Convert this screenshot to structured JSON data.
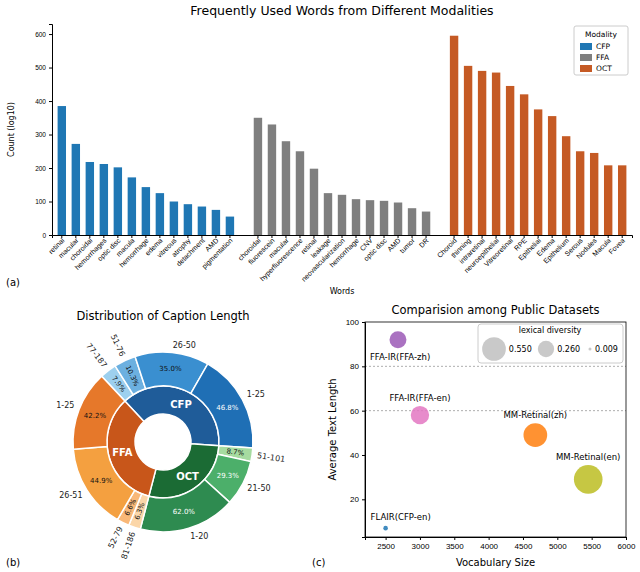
{
  "chart_data": [
    {
      "type": "bar",
      "title": "Frequently Used Words from Different Modalities",
      "annotation": "(a)",
      "x_label": "Words",
      "y_label": "Count (log10)",
      "categories": [
        "retinal",
        "macular",
        "choroidal",
        "hemorrhages",
        "optic disc",
        "macula",
        "hemorrhage",
        "edema",
        "vitreous",
        "atrophy",
        "detachment",
        "AMD",
        "pigmentation",
        null,
        "choroidal",
        "fluorescein",
        "macular",
        "hyperfluorescence",
        "retinal",
        "leakage",
        "neovascularization",
        "hemorrhage",
        "CNV",
        "optic disc",
        "AMD",
        "tumor",
        "DR",
        null,
        "Choroid",
        "thinning",
        "intraretinal",
        "neuroepithelial",
        "Vitreoretinal",
        "RPE",
        "Epithelial",
        "Edema",
        "Epithelium",
        "Serous",
        "Nodules",
        "Macula",
        "Fovea"
      ],
      "series": [
        {
          "name": "CFP",
          "color": "#1f77b4",
          "values": [
            385,
            272,
            218,
            212,
            202,
            172,
            143,
            125,
            100,
            92,
            85,
            75,
            55,
            null,
            null,
            null,
            null,
            null,
            null,
            null,
            null,
            null,
            null,
            null,
            null,
            null,
            null,
            null,
            null,
            null,
            null,
            null,
            null,
            null,
            null,
            null,
            null,
            null,
            null,
            null,
            null
          ]
        },
        {
          "name": "FFA",
          "color": "#7f7f7f",
          "values": [
            null,
            null,
            null,
            null,
            null,
            null,
            null,
            null,
            null,
            null,
            null,
            null,
            null,
            null,
            350,
            330,
            280,
            250,
            198,
            125,
            120,
            107,
            104,
            102,
            97,
            80,
            70,
            null,
            null,
            null,
            null,
            null,
            null,
            null,
            null,
            null,
            null,
            null,
            null,
            null,
            null
          ]
        },
        {
          "name": "OCT",
          "color": "#c55a24",
          "values": [
            null,
            null,
            null,
            null,
            null,
            null,
            null,
            null,
            null,
            null,
            null,
            null,
            null,
            null,
            null,
            null,
            null,
            null,
            null,
            null,
            null,
            null,
            null,
            null,
            null,
            null,
            null,
            null,
            595,
            505,
            490,
            485,
            445,
            420,
            375,
            355,
            295,
            250,
            245,
            208,
            208
          ]
        }
      ],
      "ylim": [
        0,
        630
      ],
      "yticks": [
        0,
        100,
        200,
        300,
        400,
        500,
        600
      ],
      "legend": "upper right",
      "legend_title": "Modality"
    },
    {
      "type": "sunburst",
      "title": "Distribution of Caption Length",
      "annotation": "(b)",
      "data_labels": true,
      "series": [
        {
          "name": "CFP",
          "color": "#1f5c99",
          "value": 38,
          "categories": [
            "77-187",
            "51-76",
            "26-50",
            "1-25"
          ],
          "values": [
            7.9,
            10.3,
            35.0,
            46.8
          ],
          "value_labels": [
            "7.9%",
            "10.3%",
            "35.0%",
            "46.8%"
          ],
          "colors": [
            "#9dd0ee",
            "#6cb0e0",
            "#3a8fd0",
            "#1f6fb5"
          ]
        },
        {
          "name": "OCT",
          "color": "#1b6b34",
          "value": 28,
          "categories": [
            "51-101",
            "21-50",
            "1-20"
          ],
          "values": [
            8.7,
            29.3,
            62.0
          ],
          "value_labels": [
            "8.7%",
            "29.3%",
            "62.0%"
          ],
          "colors": [
            "#a6dba0",
            "#4caf6a",
            "#2e8b50"
          ]
        },
        {
          "name": "FFA",
          "color": "#c8561a",
          "value": 34,
          "categories": [
            "81-186",
            "52-79",
            "26-51",
            "1-25"
          ],
          "values": [
            6.3,
            6.6,
            44.9,
            42.2
          ],
          "value_labels": [
            "6.3%",
            "6.6%",
            "44.9%",
            "42.2%"
          ],
          "colors": [
            "#fbd6a8",
            "#f9b878",
            "#f4a040",
            "#e6782a"
          ]
        }
      ]
    },
    {
      "type": "scatter",
      "title": "Comparision among Public Datasets",
      "annotation": "(c)",
      "x_label": "Vocabulary Size",
      "y_label": "Average Text Length",
      "xlim": [
        2200,
        6000
      ],
      "xticks": [
        2500,
        3000,
        3500,
        4000,
        4500,
        5000,
        5500,
        6000
      ],
      "ylim": [
        3,
        100
      ],
      "yticks": [
        20,
        40,
        60,
        80,
        100
      ],
      "hlines": [
        80,
        60
      ],
      "size_legend_title": "lexical diversity",
      "size_legend": [
        {
          "value": 0.55,
          "label": "0.550"
        },
        {
          "value": 0.26,
          "label": "0.260"
        },
        {
          "value": 0.009,
          "label": "0.009"
        }
      ],
      "series": [
        {
          "name": "FFA-IR(FFA-zh)",
          "color": "#9b59b6",
          "x": [
            2680
          ],
          "values": [
            92
          ],
          "size": [
            0.28
          ]
        },
        {
          "name": "FFA-IR(FFA-en)",
          "color": "#e377c2",
          "x": [
            3000
          ],
          "values": [
            58
          ],
          "size": [
            0.33
          ]
        },
        {
          "name": "MM-Retinal(zh)",
          "color": "#ff7f0e",
          "x": [
            4680
          ],
          "values": [
            49
          ],
          "size": [
            0.55
          ]
        },
        {
          "name": "MM-Retinal(en)",
          "color": "#bcbd22",
          "x": [
            5450
          ],
          "values": [
            29
          ],
          "size": [
            0.8
          ]
        },
        {
          "name": "FLAIR(CFP-en)",
          "color": "#1f77b4",
          "x": [
            2500
          ],
          "values": [
            7
          ],
          "size": [
            0.02
          ]
        }
      ]
    }
  ]
}
